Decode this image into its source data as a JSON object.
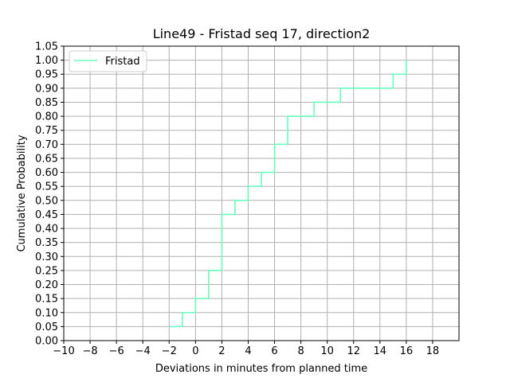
{
  "chart_data": {
    "type": "line",
    "drawstyle": "steps-post",
    "title": "Line49 - Fristad seq 17, direction2",
    "xlabel": "Deviations in minutes from planned time",
    "ylabel": "Cumulative Probability",
    "xlim": [
      -10,
      20
    ],
    "ylim": [
      0,
      1.05
    ],
    "xticks": [
      -10,
      -8,
      -6,
      -4,
      -2,
      0,
      2,
      4,
      6,
      8,
      10,
      12,
      14,
      16,
      18
    ],
    "xtick_labels": [
      "−10",
      "−8",
      "−6",
      "−4",
      "−2",
      "0",
      "2",
      "4",
      "6",
      "8",
      "10",
      "12",
      "14",
      "16",
      "18"
    ],
    "yticks": [
      0,
      0.05,
      0.1,
      0.15,
      0.2,
      0.25,
      0.3,
      0.35,
      0.4,
      0.45,
      0.5,
      0.55,
      0.6,
      0.65,
      0.7,
      0.75,
      0.8,
      0.85,
      0.9,
      0.95,
      1.0,
      1.05
    ],
    "ytick_labels": [
      "0.00",
      "0.05",
      "0.10",
      "0.15",
      "0.20",
      "0.25",
      "0.30",
      "0.35",
      "0.40",
      "0.45",
      "0.50",
      "0.55",
      "0.60",
      "0.65",
      "0.70",
      "0.75",
      "0.80",
      "0.85",
      "0.90",
      "0.95",
      "1.00",
      "1.05"
    ],
    "grid": true,
    "legend_position": "top-left",
    "series": [
      {
        "name": "Fristad",
        "color": "#66ffbb",
        "x": [
          -2,
          -1,
          0,
          1,
          2,
          3,
          4,
          5,
          6,
          7,
          9,
          11,
          15,
          16
        ],
        "y": [
          0.05,
          0.1,
          0.15,
          0.25,
          0.45,
          0.5,
          0.55,
          0.6,
          0.7,
          0.8,
          0.85,
          0.9,
          0.95,
          1.0
        ]
      }
    ]
  }
}
